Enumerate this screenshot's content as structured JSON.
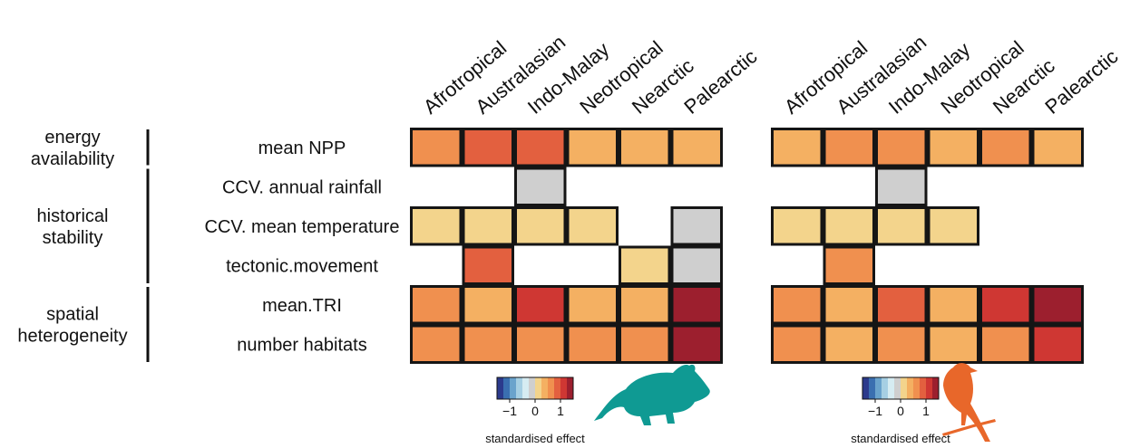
{
  "chart_data": {
    "type": "heatmap",
    "groups": [
      {
        "label_lines": [
          "energy",
          "availability"
        ],
        "rows": [
          0
        ]
      },
      {
        "label_lines": [
          "historical",
          "stability"
        ],
        "rows": [
          1,
          2,
          3
        ]
      },
      {
        "label_lines": [
          "spatial",
          "heterogeneity"
        ],
        "rows": [
          4,
          5
        ]
      }
    ],
    "rows": [
      "mean NPP",
      "CCV. annual rainfall",
      "CCV. mean temperature",
      "tectonic.movement",
      "mean.TRI",
      "number habitats"
    ],
    "columns": [
      "Afrotropical",
      "Australasian",
      "Indo-Malay",
      "Neotropical",
      "Nearctic",
      "Palearctic"
    ],
    "color_scale": {
      "domain": [
        -1.5,
        1.5
      ],
      "colors": [
        "#2b3a8c",
        "#3a6fb0",
        "#6aa3cc",
        "#a6cfe3",
        "#d6ecf2",
        "#cfcfcf",
        "#f3d48c",
        "#f4b062",
        "#f0904f",
        "#e3603f",
        "#cf3733",
        "#9c1f2e"
      ],
      "ticks": [
        -1,
        0,
        1
      ],
      "tick_labels": [
        "−1",
        "0",
        "1"
      ],
      "title": "standardised effect"
    },
    "panels": [
      {
        "taxon": "mammals",
        "icon": "rodent-silhouette-icon",
        "icon_color": "#0f9a93",
        "values": [
          [
            0.72,
            0.96,
            0.92,
            0.45,
            0.45,
            0.45
          ],
          [
            null,
            null,
            -0.25,
            null,
            null,
            null
          ],
          [
            0.0,
            0.0,
            0.0,
            0.0,
            null,
            -0.25
          ],
          [
            null,
            0.92,
            null,
            null,
            0.0,
            -0.25
          ],
          [
            0.72,
            0.45,
            1.15,
            0.45,
            0.45,
            1.4
          ],
          [
            0.72,
            0.72,
            0.72,
            0.72,
            0.72,
            1.4
          ]
        ]
      },
      {
        "taxon": "birds",
        "icon": "bird-silhouette-icon",
        "icon_color": "#e8672a",
        "values": [
          [
            0.45,
            0.72,
            0.72,
            0.45,
            0.72,
            0.45
          ],
          [
            null,
            null,
            -0.25,
            null,
            null,
            null
          ],
          [
            0.0,
            0.0,
            0.0,
            0.0,
            null,
            null
          ],
          [
            null,
            0.72,
            null,
            null,
            null,
            null
          ],
          [
            0.72,
            0.45,
            0.96,
            0.45,
            1.15,
            1.4
          ],
          [
            0.72,
            0.45,
            0.72,
            0.45,
            0.72,
            1.15
          ]
        ]
      }
    ]
  }
}
